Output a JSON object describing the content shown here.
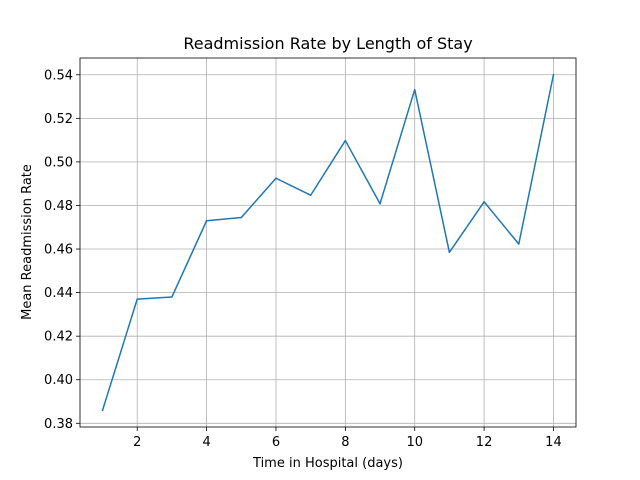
{
  "chart_data": {
    "type": "line",
    "title": "Readmission Rate by Length of Stay",
    "xlabel": "Time in Hospital (days)",
    "ylabel": "Mean Readmission Rate",
    "x": [
      1,
      2,
      3,
      4,
      5,
      6,
      7,
      8,
      9,
      10,
      11,
      12,
      13,
      14
    ],
    "series": [
      {
        "values": [
          0.386,
          0.437,
          0.438,
          0.473,
          0.4745,
          0.4925,
          0.4847,
          0.5098,
          0.4808,
          0.5332,
          0.4585,
          0.4817,
          0.4623,
          0.54
        ],
        "color": "#1f77b4"
      }
    ],
    "xlim": [
      0.35,
      14.65
    ],
    "ylim": [
      0.3783,
      0.5477
    ],
    "xticks": [
      2,
      4,
      6,
      8,
      10,
      12,
      14
    ],
    "yticks": [
      0.38,
      0.4,
      0.42,
      0.44,
      0.46,
      0.48,
      0.5,
      0.52,
      0.54
    ],
    "xtick_labels": [
      "2",
      "4",
      "6",
      "8",
      "10",
      "12",
      "14"
    ],
    "ytick_labels": [
      "0.38",
      "0.40",
      "0.42",
      "0.44",
      "0.46",
      "0.48",
      "0.50",
      "0.52",
      "0.54"
    ],
    "grid": true,
    "legend": "none"
  }
}
